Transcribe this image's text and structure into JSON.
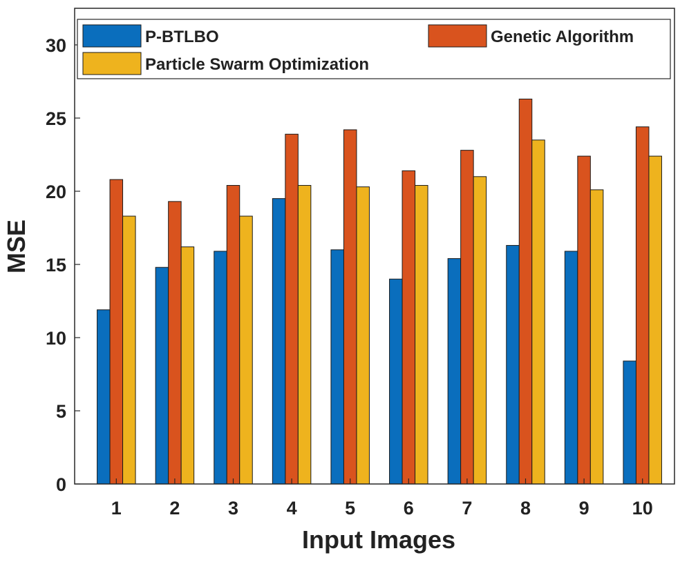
{
  "chart_data": {
    "type": "bar",
    "title": "",
    "xlabel": "Input Images",
    "ylabel": "MSE",
    "categories": [
      "1",
      "2",
      "3",
      "4",
      "5",
      "6",
      "7",
      "8",
      "9",
      "10"
    ],
    "yticks": [
      0,
      5,
      10,
      15,
      20,
      25,
      30
    ],
    "ylim": [
      0,
      32.5
    ],
    "grid": false,
    "legend_position": "top",
    "series": [
      {
        "name": "P-BTLBO",
        "color": "#0a6ebd",
        "values": [
          11.9,
          14.8,
          15.9,
          19.5,
          16.0,
          14.0,
          15.4,
          16.3,
          15.9,
          8.4
        ]
      },
      {
        "name": "Genetic Algorithm",
        "color": "#d9531e",
        "values": [
          20.8,
          19.3,
          20.4,
          23.9,
          24.2,
          21.4,
          22.8,
          26.3,
          22.4,
          24.4
        ]
      },
      {
        "name": "Particle Swarm Optimization",
        "color": "#eeb31e",
        "values": [
          18.3,
          16.2,
          18.3,
          20.4,
          20.3,
          20.4,
          21.0,
          23.5,
          20.1,
          22.4
        ]
      }
    ]
  }
}
